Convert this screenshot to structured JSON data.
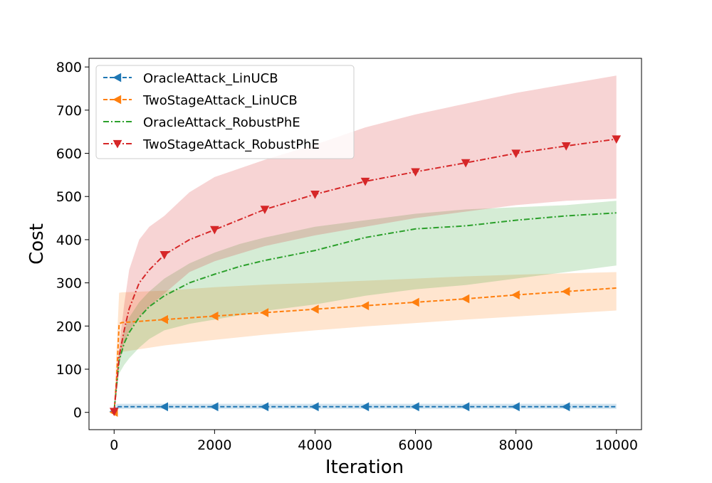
{
  "chart_data": {
    "type": "line",
    "title": "",
    "xlabel": "Iteration",
    "ylabel": "Cost",
    "xlim": [
      -500,
      10500
    ],
    "ylim": [
      -40,
      820
    ],
    "xticks": [
      0,
      2000,
      4000,
      6000,
      8000,
      10000
    ],
    "xtick_labels": [
      "0",
      "2000",
      "4000",
      "6000",
      "8000",
      "10000"
    ],
    "yticks": [
      0,
      100,
      200,
      300,
      400,
      500,
      600,
      700,
      800
    ],
    "ytick_labels": [
      "0",
      "100",
      "200",
      "300",
      "400",
      "500",
      "600",
      "700",
      "800"
    ],
    "grid": false,
    "legend_position": "top-left",
    "series": [
      {
        "name": "OracleAttack_LinUCB",
        "color": "#1f77b4",
        "linestyle": "dashed",
        "marker": "triangle-left",
        "x": [
          0,
          50,
          100,
          1000,
          2000,
          3000,
          4000,
          5000,
          6000,
          7000,
          8000,
          9000,
          10000
        ],
        "y": [
          2,
          13,
          13,
          13,
          13,
          13,
          13,
          13,
          13,
          13,
          13,
          13,
          13
        ],
        "band_lower": [
          0,
          8,
          8,
          8,
          8,
          8,
          8,
          8,
          8,
          8,
          8,
          8,
          8
        ],
        "band_upper": [
          4,
          20,
          20,
          20,
          20,
          20,
          20,
          20,
          20,
          20,
          20,
          20,
          20
        ],
        "marker_x": [
          0,
          1000,
          2000,
          3000,
          4000,
          5000,
          6000,
          7000,
          8000,
          9000
        ]
      },
      {
        "name": "TwoStageAttack_LinUCB",
        "color": "#ff7f0e",
        "linestyle": "dashed",
        "marker": "triangle-left",
        "x": [
          0,
          50,
          100,
          150,
          1000,
          2000,
          3000,
          4000,
          5000,
          6000,
          7000,
          8000,
          9000,
          10000
        ],
        "y": [
          0,
          80,
          205,
          208,
          215,
          223,
          231,
          239,
          247,
          255,
          263,
          272,
          280,
          288
        ],
        "band_lower": [
          0,
          60,
          130,
          140,
          155,
          168,
          180,
          190,
          199,
          207,
          215,
          222,
          229,
          236
        ],
        "band_upper": [
          5,
          150,
          277,
          278,
          282,
          290,
          296,
          300,
          305,
          310,
          315,
          319,
          322,
          325
        ],
        "marker_x": [
          0,
          1000,
          2000,
          3000,
          4000,
          5000,
          6000,
          7000,
          8000,
          9000
        ]
      },
      {
        "name": "OracleAttack_RobustPhE",
        "color": "#2ca02c",
        "linestyle": "dashdot",
        "marker": "none",
        "x": [
          0,
          100,
          200,
          300,
          500,
          700,
          1000,
          1500,
          2000,
          2500,
          3000,
          4000,
          5000,
          6000,
          7000,
          8000,
          9000,
          10000
        ],
        "y": [
          5,
          120,
          160,
          185,
          220,
          245,
          270,
          300,
          320,
          338,
          352,
          375,
          405,
          425,
          432,
          445,
          455,
          462
        ],
        "band_lower": [
          0,
          90,
          110,
          125,
          150,
          170,
          190,
          205,
          215,
          225,
          235,
          250,
          270,
          285,
          295,
          310,
          325,
          340
        ],
        "band_upper": [
          10,
          140,
          190,
          220,
          255,
          280,
          310,
          345,
          370,
          390,
          405,
          430,
          445,
          460,
          470,
          475,
          480,
          490
        ],
        "marker_x": []
      },
      {
        "name": "TwoStageAttack_RobustPhE",
        "color": "#d62728",
        "linestyle": "dashdot",
        "marker": "triangle-down",
        "x": [
          0,
          100,
          200,
          300,
          500,
          700,
          1000,
          1500,
          2000,
          3000,
          4000,
          5000,
          6000,
          7000,
          8000,
          9000,
          10000
        ],
        "y": [
          2,
          130,
          190,
          240,
          300,
          330,
          365,
          400,
          423,
          470,
          505,
          535,
          557,
          578,
          600,
          617,
          633
        ],
        "band_lower": [
          0,
          110,
          160,
          190,
          220,
          245,
          275,
          325,
          350,
          385,
          410,
          430,
          450,
          465,
          480,
          490,
          495
        ],
        "band_upper": [
          5,
          150,
          250,
          330,
          400,
          430,
          455,
          510,
          545,
          585,
          620,
          660,
          690,
          715,
          740,
          760,
          780
        ],
        "marker_x": [
          0,
          1000,
          2000,
          3000,
          4000,
          5000,
          6000,
          7000,
          8000,
          9000,
          10000
        ]
      }
    ]
  }
}
